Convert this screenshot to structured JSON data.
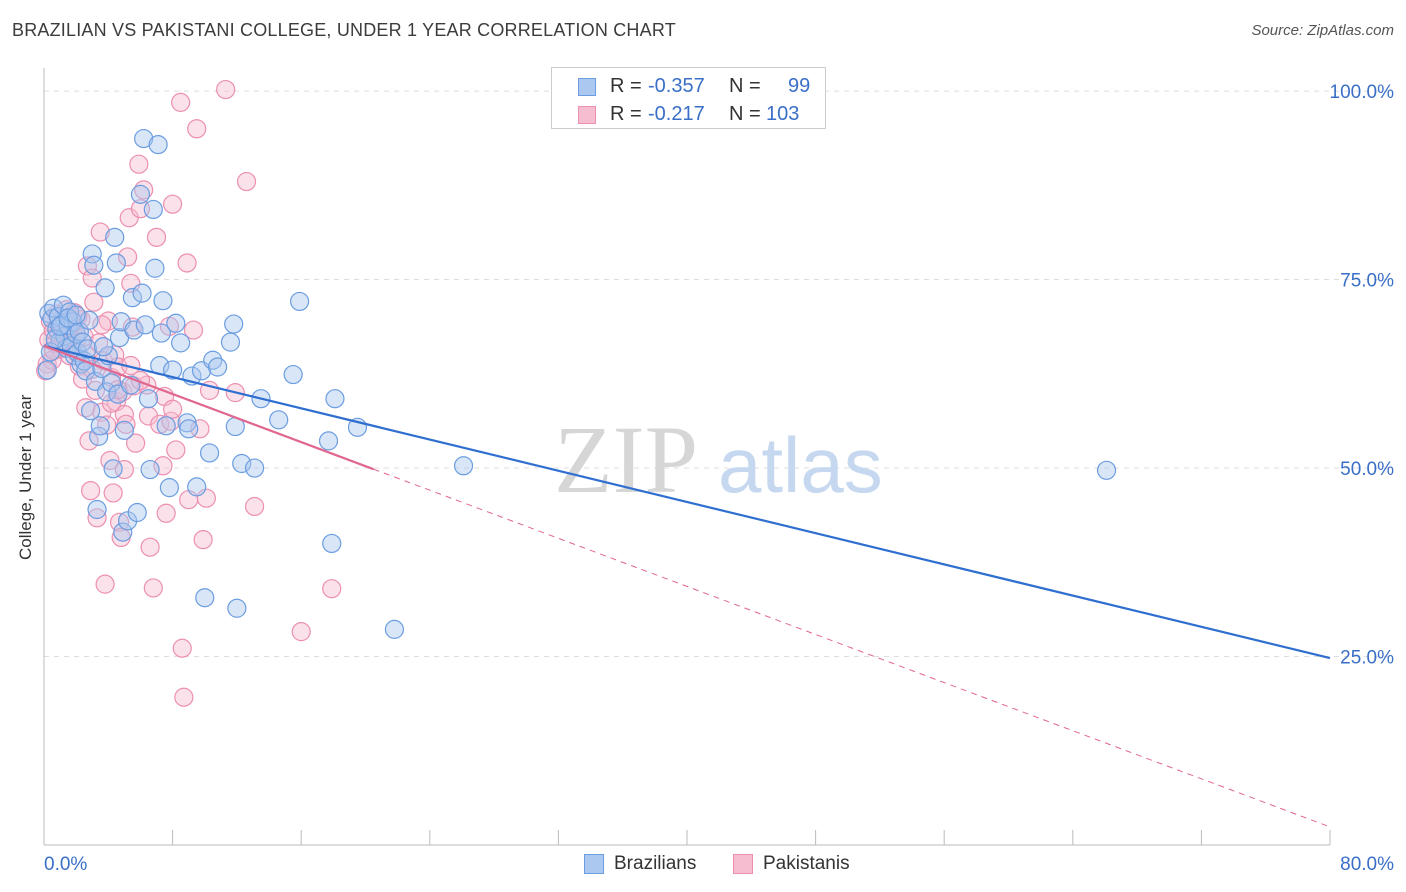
{
  "title": "BRAZILIAN VS PAKISTANI COLLEGE, UNDER 1 YEAR CORRELATION CHART",
  "source": "Source: ZipAtlas.com",
  "watermark": {
    "zip": "ZIP",
    "atlas": "atlas"
  },
  "legend": {
    "rows": [
      {
        "r_label": "R =",
        "r_value": "-0.357",
        "n_label": "N =",
        "n_value": "99",
        "color": "#6b9de0"
      },
      {
        "r_label": "R =",
        "r_value": "-0.217",
        "n_label": "N =",
        "n_value": "103",
        "color": "#ec8fb0"
      }
    ]
  },
  "bottom_legend": [
    {
      "label": "Brazilians",
      "color": "#6b9de0"
    },
    {
      "label": "Pakistanis",
      "color": "#ec8fb0"
    }
  ],
  "colors": {
    "brazilians_fill": "#aac8f0",
    "brazilians_stroke": "#6b9de0",
    "brazilians_line": "#2f6fd0",
    "pakistanis_fill": "#f6bcd0",
    "pakistanis_stroke": "#ec8fb0",
    "pakistanis_line": "#e0678f",
    "tick_text": "#3a6fc8",
    "grid": "#dddddd"
  },
  "chart_data": {
    "type": "scatter",
    "title": "BRAZILIAN VS PAKISTANI COLLEGE, UNDER 1 YEAR CORRELATION CHART",
    "xlabel": "",
    "ylabel": "College, Under 1 year",
    "xlim": [
      0,
      80
    ],
    "ylim": [
      0,
      102
    ],
    "x_tick_labels": [
      "0.0%",
      "80.0%"
    ],
    "y_ticks": [
      25,
      50,
      75,
      100
    ],
    "y_tick_labels": [
      "25.0%",
      "50.0%",
      "75.0%",
      "100.0%"
    ],
    "grid": "horizontal dashed",
    "legend_position": "top-center",
    "series": [
      {
        "name": "Brazilians",
        "r": -0.357,
        "n": 99,
        "trend": {
          "x": [
            0,
            80
          ],
          "y": [
            66.2,
            24.8
          ],
          "solid_until": 80
        },
        "points": [
          [
            0.3,
            70.5
          ],
          [
            0.5,
            69.8
          ],
          [
            0.6,
            71.2
          ],
          [
            0.8,
            68.4
          ],
          [
            0.9,
            70.1
          ],
          [
            1.0,
            66.8
          ],
          [
            1.1,
            69.0
          ],
          [
            1.2,
            71.6
          ],
          [
            1.3,
            67.5
          ],
          [
            1.4,
            65.9
          ],
          [
            1.5,
            68.9
          ],
          [
            1.6,
            70.7
          ],
          [
            1.7,
            66.2
          ],
          [
            1.8,
            69.4
          ],
          [
            1.9,
            64.9
          ],
          [
            2.0,
            67.8
          ],
          [
            2.1,
            65.3
          ],
          [
            2.2,
            68.1
          ],
          [
            2.3,
            63.8
          ],
          [
            2.4,
            66.7
          ],
          [
            2.5,
            64.2
          ],
          [
            2.6,
            62.9
          ],
          [
            2.8,
            69.6
          ],
          [
            2.9,
            57.6
          ],
          [
            3.0,
            78.4
          ],
          [
            3.1,
            76.9
          ],
          [
            3.2,
            61.5
          ],
          [
            3.3,
            44.5
          ],
          [
            3.4,
            54.2
          ],
          [
            3.5,
            55.6
          ],
          [
            3.6,
            63.2
          ],
          [
            3.8,
            73.9
          ],
          [
            3.9,
            60.1
          ],
          [
            4.0,
            64.9
          ],
          [
            4.2,
            61.3
          ],
          [
            4.3,
            49.9
          ],
          [
            4.4,
            80.6
          ],
          [
            4.5,
            77.2
          ],
          [
            4.6,
            59.8
          ],
          [
            4.7,
            67.3
          ],
          [
            4.8,
            69.4
          ],
          [
            4.9,
            41.5
          ],
          [
            5.0,
            55.0
          ],
          [
            5.2,
            43.0
          ],
          [
            5.4,
            61.0
          ],
          [
            5.5,
            72.6
          ],
          [
            5.6,
            68.3
          ],
          [
            5.8,
            44.1
          ],
          [
            6.0,
            86.3
          ],
          [
            6.1,
            73.2
          ],
          [
            6.2,
            93.7
          ],
          [
            6.3,
            69.0
          ],
          [
            6.5,
            59.2
          ],
          [
            6.6,
            49.8
          ],
          [
            6.8,
            84.3
          ],
          [
            6.9,
            76.5
          ],
          [
            7.1,
            92.9
          ],
          [
            7.2,
            63.6
          ],
          [
            7.3,
            67.9
          ],
          [
            7.4,
            72.2
          ],
          [
            7.6,
            55.6
          ],
          [
            7.8,
            47.4
          ],
          [
            8.0,
            63.0
          ],
          [
            8.2,
            69.2
          ],
          [
            8.5,
            66.6
          ],
          [
            8.9,
            56.0
          ],
          [
            9.0,
            55.2
          ],
          [
            9.2,
            62.2
          ],
          [
            9.5,
            47.5
          ],
          [
            9.8,
            62.9
          ],
          [
            10.0,
            32.8
          ],
          [
            10.3,
            52.0
          ],
          [
            10.5,
            64.3
          ],
          [
            10.8,
            63.4
          ],
          [
            11.6,
            66.7
          ],
          [
            11.8,
            69.1
          ],
          [
            11.9,
            55.5
          ],
          [
            12.0,
            31.4
          ],
          [
            12.3,
            50.6
          ],
          [
            13.1,
            50.0
          ],
          [
            13.5,
            59.2
          ],
          [
            14.6,
            56.4
          ],
          [
            15.5,
            62.4
          ],
          [
            15.9,
            72.1
          ],
          [
            17.7,
            53.6
          ],
          [
            17.9,
            40.0
          ],
          [
            18.1,
            59.2
          ],
          [
            19.5,
            55.4
          ],
          [
            21.8,
            28.6
          ],
          [
            26.1,
            50.3
          ],
          [
            66.1,
            49.7
          ],
          [
            0.2,
            63.0
          ],
          [
            0.4,
            65.4
          ],
          [
            0.7,
            67.1
          ],
          [
            1.0,
            68.8
          ],
          [
            1.5,
            69.9
          ],
          [
            2.0,
            70.3
          ],
          [
            2.7,
            65.8
          ],
          [
            3.7,
            66.1
          ]
        ]
      },
      {
        "name": "Pakistanis",
        "r": -0.217,
        "n": 103,
        "trend": {
          "x": [
            0,
            80
          ],
          "y": [
            66.2,
            2.4
          ],
          "solid_until": 20.5
        },
        "points": [
          [
            0.2,
            63.8
          ],
          [
            0.3,
            67.0
          ],
          [
            0.4,
            69.5
          ],
          [
            0.5,
            64.3
          ],
          [
            0.6,
            68.2
          ],
          [
            0.7,
            66.5
          ],
          [
            0.8,
            70.4
          ],
          [
            0.9,
            67.7
          ],
          [
            1.0,
            65.8
          ],
          [
            1.1,
            68.9
          ],
          [
            1.2,
            69.8
          ],
          [
            1.3,
            66.1
          ],
          [
            1.4,
            71.0
          ],
          [
            1.5,
            67.3
          ],
          [
            1.6,
            64.9
          ],
          [
            1.7,
            69.2
          ],
          [
            1.8,
            68.0
          ],
          [
            1.9,
            70.6
          ],
          [
            2.0,
            66.9
          ],
          [
            2.1,
            65.2
          ],
          [
            2.2,
            63.5
          ],
          [
            2.3,
            69.7
          ],
          [
            2.4,
            61.8
          ],
          [
            2.5,
            67.4
          ],
          [
            2.6,
            58.0
          ],
          [
            2.7,
            76.8
          ],
          [
            2.8,
            53.6
          ],
          [
            2.9,
            47.0
          ],
          [
            3.0,
            75.2
          ],
          [
            3.1,
            72.0
          ],
          [
            3.2,
            60.3
          ],
          [
            3.3,
            43.4
          ],
          [
            3.4,
            66.6
          ],
          [
            3.5,
            81.3
          ],
          [
            3.6,
            57.4
          ],
          [
            3.7,
            64.2
          ],
          [
            3.8,
            34.6
          ],
          [
            3.9,
            55.7
          ],
          [
            4.0,
            69.5
          ],
          [
            4.1,
            51.0
          ],
          [
            4.2,
            62.0
          ],
          [
            4.3,
            46.7
          ],
          [
            4.4,
            65.0
          ],
          [
            4.5,
            58.8
          ],
          [
            4.6,
            63.4
          ],
          [
            4.7,
            42.8
          ],
          [
            4.8,
            40.8
          ],
          [
            4.9,
            60.1
          ],
          [
            5.0,
            57.1
          ],
          [
            5.1,
            55.8
          ],
          [
            5.2,
            78.0
          ],
          [
            5.3,
            83.2
          ],
          [
            5.4,
            74.5
          ],
          [
            5.5,
            68.7
          ],
          [
            5.6,
            60.9
          ],
          [
            5.7,
            53.3
          ],
          [
            5.9,
            90.3
          ],
          [
            6.0,
            84.4
          ],
          [
            6.2,
            86.9
          ],
          [
            6.4,
            61.0
          ],
          [
            6.5,
            56.9
          ],
          [
            6.6,
            39.5
          ],
          [
            6.8,
            34.1
          ],
          [
            7.0,
            80.6
          ],
          [
            7.2,
            55.8
          ],
          [
            7.4,
            50.3
          ],
          [
            7.6,
            44.0
          ],
          [
            7.8,
            68.8
          ],
          [
            7.9,
            56.2
          ],
          [
            8.0,
            85.0
          ],
          [
            8.2,
            52.4
          ],
          [
            8.5,
            98.5
          ],
          [
            8.6,
            26.1
          ],
          [
            8.7,
            19.6
          ],
          [
            8.9,
            77.2
          ],
          [
            9.0,
            45.8
          ],
          [
            9.3,
            68.3
          ],
          [
            9.5,
            95.0
          ],
          [
            9.7,
            55.2
          ],
          [
            9.9,
            40.5
          ],
          [
            10.1,
            46.0
          ],
          [
            10.3,
            60.3
          ],
          [
            11.3,
            100.2
          ],
          [
            11.9,
            60.0
          ],
          [
            12.6,
            88.0
          ],
          [
            13.1,
            44.9
          ],
          [
            16.0,
            28.3
          ],
          [
            17.9,
            34.0
          ],
          [
            0.1,
            62.9
          ],
          [
            0.6,
            65.6
          ],
          [
            1.2,
            66.8
          ],
          [
            1.6,
            68.6
          ],
          [
            2.1,
            70.1
          ],
          [
            2.6,
            65.1
          ],
          [
            3.0,
            63.1
          ],
          [
            3.6,
            69.0
          ],
          [
            4.2,
            58.6
          ],
          [
            4.6,
            60.4
          ],
          [
            5.0,
            49.8
          ],
          [
            5.4,
            63.6
          ],
          [
            6.0,
            61.6
          ],
          [
            7.5,
            59.5
          ],
          [
            8.0,
            57.8
          ]
        ]
      }
    ]
  }
}
